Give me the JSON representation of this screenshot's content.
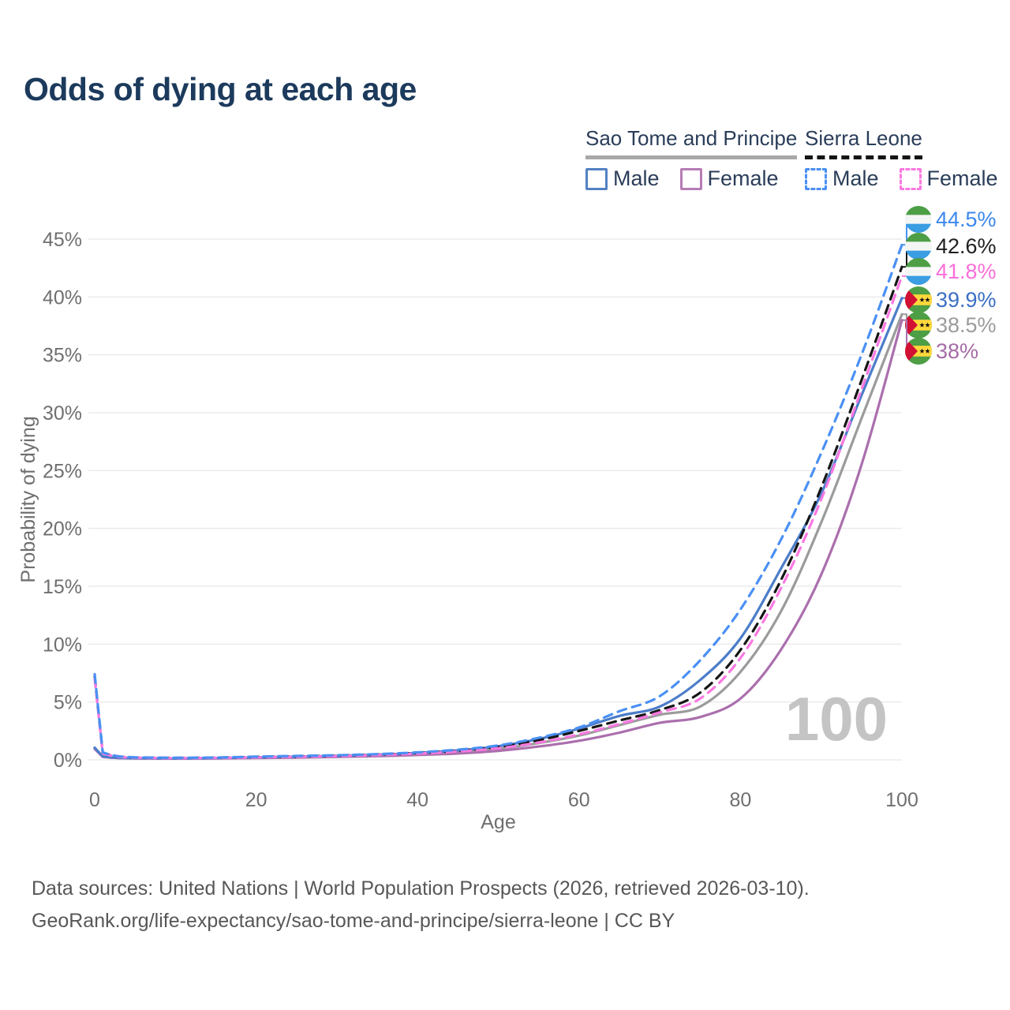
{
  "title": "Odds of dying at each age",
  "legend": {
    "groups": [
      {
        "name": "Sao Tome and Principe",
        "line_style": "solid",
        "underline_color": "#a8a8a8",
        "items": [
          {
            "label": "Male",
            "color": "#5282c3",
            "dashed": false
          },
          {
            "label": "Female",
            "color": "#b67cb4",
            "dashed": false
          }
        ]
      },
      {
        "name": "Sierra Leone",
        "line_style": "dashed",
        "underline_color": "#141414",
        "items": [
          {
            "label": "Male",
            "color": "#4a90f4",
            "dashed": true
          },
          {
            "label": "Female",
            "color": "#fb78e1",
            "dashed": true
          }
        ]
      }
    ]
  },
  "chart_data": {
    "type": "line",
    "title": "Odds of dying at each age",
    "xlabel": "Age",
    "ylabel": "Probability of dying",
    "xlim": [
      0,
      100
    ],
    "ylim": [
      0,
      47
    ],
    "grid": "horizontal",
    "legend_position": "top-right",
    "watermark": "100",
    "x_ticks": [
      0,
      20,
      40,
      60,
      80,
      100
    ],
    "y_ticks": [
      "0%",
      "5%",
      "10%",
      "15%",
      "20%",
      "25%",
      "30%",
      "35%",
      "40%",
      "45%"
    ],
    "x": [
      0,
      1,
      2,
      3,
      5,
      10,
      15,
      20,
      25,
      30,
      35,
      40,
      45,
      50,
      55,
      60,
      65,
      70,
      75,
      80,
      85,
      90,
      95,
      100
    ],
    "series": [
      {
        "name": "Sierra Leone Male",
        "country": "Sierra Leone",
        "sex": "Male",
        "color": "#4a90f4",
        "label_color": "#3d87ef",
        "dashed": true,
        "flag": "sierra-leone",
        "end_label": "44.5%",
        "values": [
          7.4,
          0.65,
          0.42,
          0.3,
          0.22,
          0.18,
          0.2,
          0.28,
          0.34,
          0.4,
          0.5,
          0.65,
          0.88,
          1.25,
          1.9,
          2.8,
          4.2,
          5.5,
          8.6,
          13.0,
          19.0,
          26.5,
          35.0,
          44.5
        ]
      },
      {
        "name": "Sierra Leone",
        "country": "Sierra Leone",
        "sex": "Both",
        "color": "#161616",
        "label_color": "#1f1f1f",
        "dashed": true,
        "flag": "sierra-leone",
        "end_label": "42.6%",
        "values": [
          7.2,
          0.6,
          0.4,
          0.28,
          0.2,
          0.17,
          0.19,
          0.25,
          0.3,
          0.37,
          0.46,
          0.6,
          0.8,
          1.12,
          1.7,
          2.5,
          3.4,
          4.3,
          5.8,
          9.5,
          15.5,
          23.5,
          32.8,
          42.6
        ]
      },
      {
        "name": "Sierra Leone Female",
        "country": "Sierra Leone",
        "sex": "Female",
        "color": "#fb78e1",
        "label_color": "#fb6ed9",
        "dashed": true,
        "flag": "sierra-leone",
        "end_label": "41.8%",
        "values": [
          7.0,
          0.55,
          0.37,
          0.26,
          0.19,
          0.15,
          0.17,
          0.22,
          0.27,
          0.33,
          0.42,
          0.55,
          0.73,
          1.0,
          1.5,
          2.2,
          3.1,
          4.1,
          5.3,
          8.8,
          14.8,
          22.5,
          32.0,
          41.8
        ]
      },
      {
        "name": "Sao Tome and Principe Male",
        "country": "Sao Tome and Principe",
        "sex": "Male",
        "color": "#4c7dc9",
        "label_color": "#3a6fc4",
        "dashed": false,
        "flag": "sao-tome-and-principe",
        "end_label": "39.9%",
        "values": [
          1.05,
          0.3,
          0.22,
          0.18,
          0.15,
          0.13,
          0.16,
          0.22,
          0.28,
          0.35,
          0.45,
          0.6,
          0.82,
          1.18,
          1.8,
          2.7,
          3.8,
          4.6,
          6.9,
          10.5,
          16.5,
          23.0,
          31.5,
          39.9
        ]
      },
      {
        "name": "Sao Tome and Principe",
        "country": "Sao Tome and Principe",
        "sex": "Both",
        "color": "#9b9b9b",
        "label_color": "#9b9b9b",
        "dashed": false,
        "flag": "sao-tome-and-principe",
        "end_label": "38.5%",
        "values": [
          1.0,
          0.28,
          0.2,
          0.16,
          0.14,
          0.12,
          0.14,
          0.19,
          0.24,
          0.3,
          0.38,
          0.5,
          0.68,
          0.95,
          1.45,
          2.1,
          3.0,
          3.9,
          4.6,
          7.6,
          12.8,
          20.5,
          29.5,
          38.5
        ]
      },
      {
        "name": "Sao Tome and Principe Female",
        "country": "Sao Tome and Principe",
        "sex": "Female",
        "color": "#ab6fad",
        "label_color": "#a56ba6",
        "dashed": false,
        "flag": "sao-tome-and-principe",
        "end_label": "38%",
        "values": [
          0.95,
          0.26,
          0.19,
          0.15,
          0.13,
          0.11,
          0.12,
          0.16,
          0.2,
          0.25,
          0.32,
          0.42,
          0.55,
          0.78,
          1.15,
          1.65,
          2.35,
          3.2,
          3.7,
          5.3,
          9.5,
          16.0,
          25.5,
          38.0
        ]
      }
    ]
  },
  "footer": {
    "line1": "Data sources: United Nations | World Population Prospects (2026, retrieved 2026-03-10).",
    "line2": "GeoRank.org/life-expectancy/sao-tome-and-principe/sierra-leone | CC BY"
  }
}
